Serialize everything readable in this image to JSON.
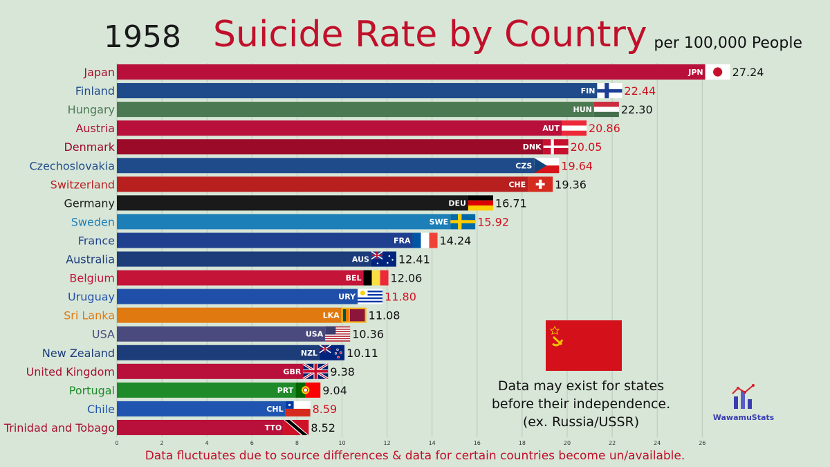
{
  "header": {
    "year": "1958",
    "title": "Suicide Rate by Country",
    "unit": "per 100,000 People"
  },
  "note": "Data may exist for states before their independence. (ex. Russia/USSR)",
  "logo": "WawamuStats",
  "footer": "Data fluctuates due to source differences & data for certain countries become un/available.",
  "chart_data": {
    "type": "bar",
    "orientation": "horizontal",
    "title": "Suicide Rate by Country",
    "xlim": [
      0,
      28
    ],
    "xticks": [
      0,
      2,
      4,
      6,
      8,
      10,
      12,
      14,
      16,
      18,
      20,
      22,
      24,
      26
    ],
    "grid": true,
    "series": [
      {
        "country": "Japan",
        "code": "JPN",
        "value": 27.24,
        "display": "27.24",
        "bar_color": "#b8103a",
        "label_color": "#a8102f",
        "value_color": "#111111",
        "flag": "jpn"
      },
      {
        "country": "Finland",
        "code": "FIN",
        "value": 22.44,
        "display": "22.44",
        "bar_color": "#1f4b8a",
        "label_color": "#1f4b8a",
        "value_color": "#d0101e",
        "flag": "fin"
      },
      {
        "country": "Hungary",
        "code": "HUN",
        "value": 22.3,
        "display": "22.30",
        "bar_color": "#4b7a52",
        "label_color": "#4b7a52",
        "value_color": "#111111",
        "flag": "hun"
      },
      {
        "country": "Austria",
        "code": "AUT",
        "value": 20.86,
        "display": "20.86",
        "bar_color": "#b8103a",
        "label_color": "#a8102f",
        "value_color": "#d0101e",
        "flag": "aut"
      },
      {
        "country": "Denmark",
        "code": "DNK",
        "value": 20.05,
        "display": "20.05",
        "bar_color": "#9c0a2a",
        "label_color": "#9c0a2a",
        "value_color": "#d0101e",
        "flag": "dnk"
      },
      {
        "country": "Czechoslovakia",
        "code": "CZS",
        "value": 19.64,
        "display": "19.64",
        "bar_color": "#1f4b8a",
        "label_color": "#1f4b8a",
        "value_color": "#d0101e",
        "flag": "czs"
      },
      {
        "country": "Switzerland",
        "code": "CHE",
        "value": 19.36,
        "display": "19.36",
        "bar_color": "#b82020",
        "label_color": "#b82020",
        "value_color": "#111111",
        "flag": "che"
      },
      {
        "country": "Germany",
        "code": "DEU",
        "value": 16.71,
        "display": "16.71",
        "bar_color": "#1a1a1a",
        "label_color": "#1a1a1a",
        "value_color": "#111111",
        "flag": "deu"
      },
      {
        "country": "Sweden",
        "code": "SWE",
        "value": 15.92,
        "display": "15.92",
        "bar_color": "#1c7fb8",
        "label_color": "#1c7fb8",
        "value_color": "#d0101e",
        "flag": "swe"
      },
      {
        "country": "France",
        "code": "FRA",
        "value": 14.24,
        "display": "14.24",
        "bar_color": "#1f3f8f",
        "label_color": "#1f3f8f",
        "value_color": "#111111",
        "flag": "fra"
      },
      {
        "country": "Australia",
        "code": "AUS",
        "value": 12.41,
        "display": "12.41",
        "bar_color": "#1c3c7a",
        "label_color": "#1c3c7a",
        "value_color": "#111111",
        "flag": "aus"
      },
      {
        "country": "Belgium",
        "code": "BEL",
        "value": 12.06,
        "display": "12.06",
        "bar_color": "#c41438",
        "label_color": "#c41438",
        "value_color": "#111111",
        "flag": "bel"
      },
      {
        "country": "Uruguay",
        "code": "URY",
        "value": 11.8,
        "display": "11.80",
        "bar_color": "#1f4fa8",
        "label_color": "#1f4fa8",
        "value_color": "#d0101e",
        "flag": "ury"
      },
      {
        "country": "Sri Lanka",
        "code": "LKA",
        "value": 11.08,
        "display": "11.08",
        "bar_color": "#e07a10",
        "label_color": "#e07a10",
        "value_color": "#111111",
        "flag": "lka"
      },
      {
        "country": "USA",
        "code": "USA",
        "value": 10.36,
        "display": "10.36",
        "bar_color": "#4a4a7e",
        "label_color": "#4a4a7e",
        "value_color": "#111111",
        "flag": "usa"
      },
      {
        "country": "New Zealand",
        "code": "NZL",
        "value": 10.11,
        "display": "10.11",
        "bar_color": "#1c3c7a",
        "label_color": "#1c3c7a",
        "value_color": "#111111",
        "flag": "nzl"
      },
      {
        "country": "United Kingdom",
        "code": "GBR",
        "value": 9.38,
        "display": "9.38",
        "bar_color": "#b8103a",
        "label_color": "#a8102f",
        "value_color": "#111111",
        "flag": "gbr"
      },
      {
        "country": "Portugal",
        "code": "PRT",
        "value": 9.04,
        "display": "9.04",
        "bar_color": "#1f8a2a",
        "label_color": "#1f8a2a",
        "value_color": "#111111",
        "flag": "prt"
      },
      {
        "country": "Chile",
        "code": "CHL",
        "value": 8.59,
        "display": "8.59",
        "bar_color": "#1f55b0",
        "label_color": "#1f55b0",
        "value_color": "#d0101e",
        "flag": "chl"
      },
      {
        "country": "Trinidad and Tobago",
        "code": "TTO",
        "value": 8.52,
        "display": "8.52",
        "bar_color": "#b8103a",
        "label_color": "#a8102f",
        "value_color": "#111111",
        "flag": "tto"
      }
    ]
  }
}
